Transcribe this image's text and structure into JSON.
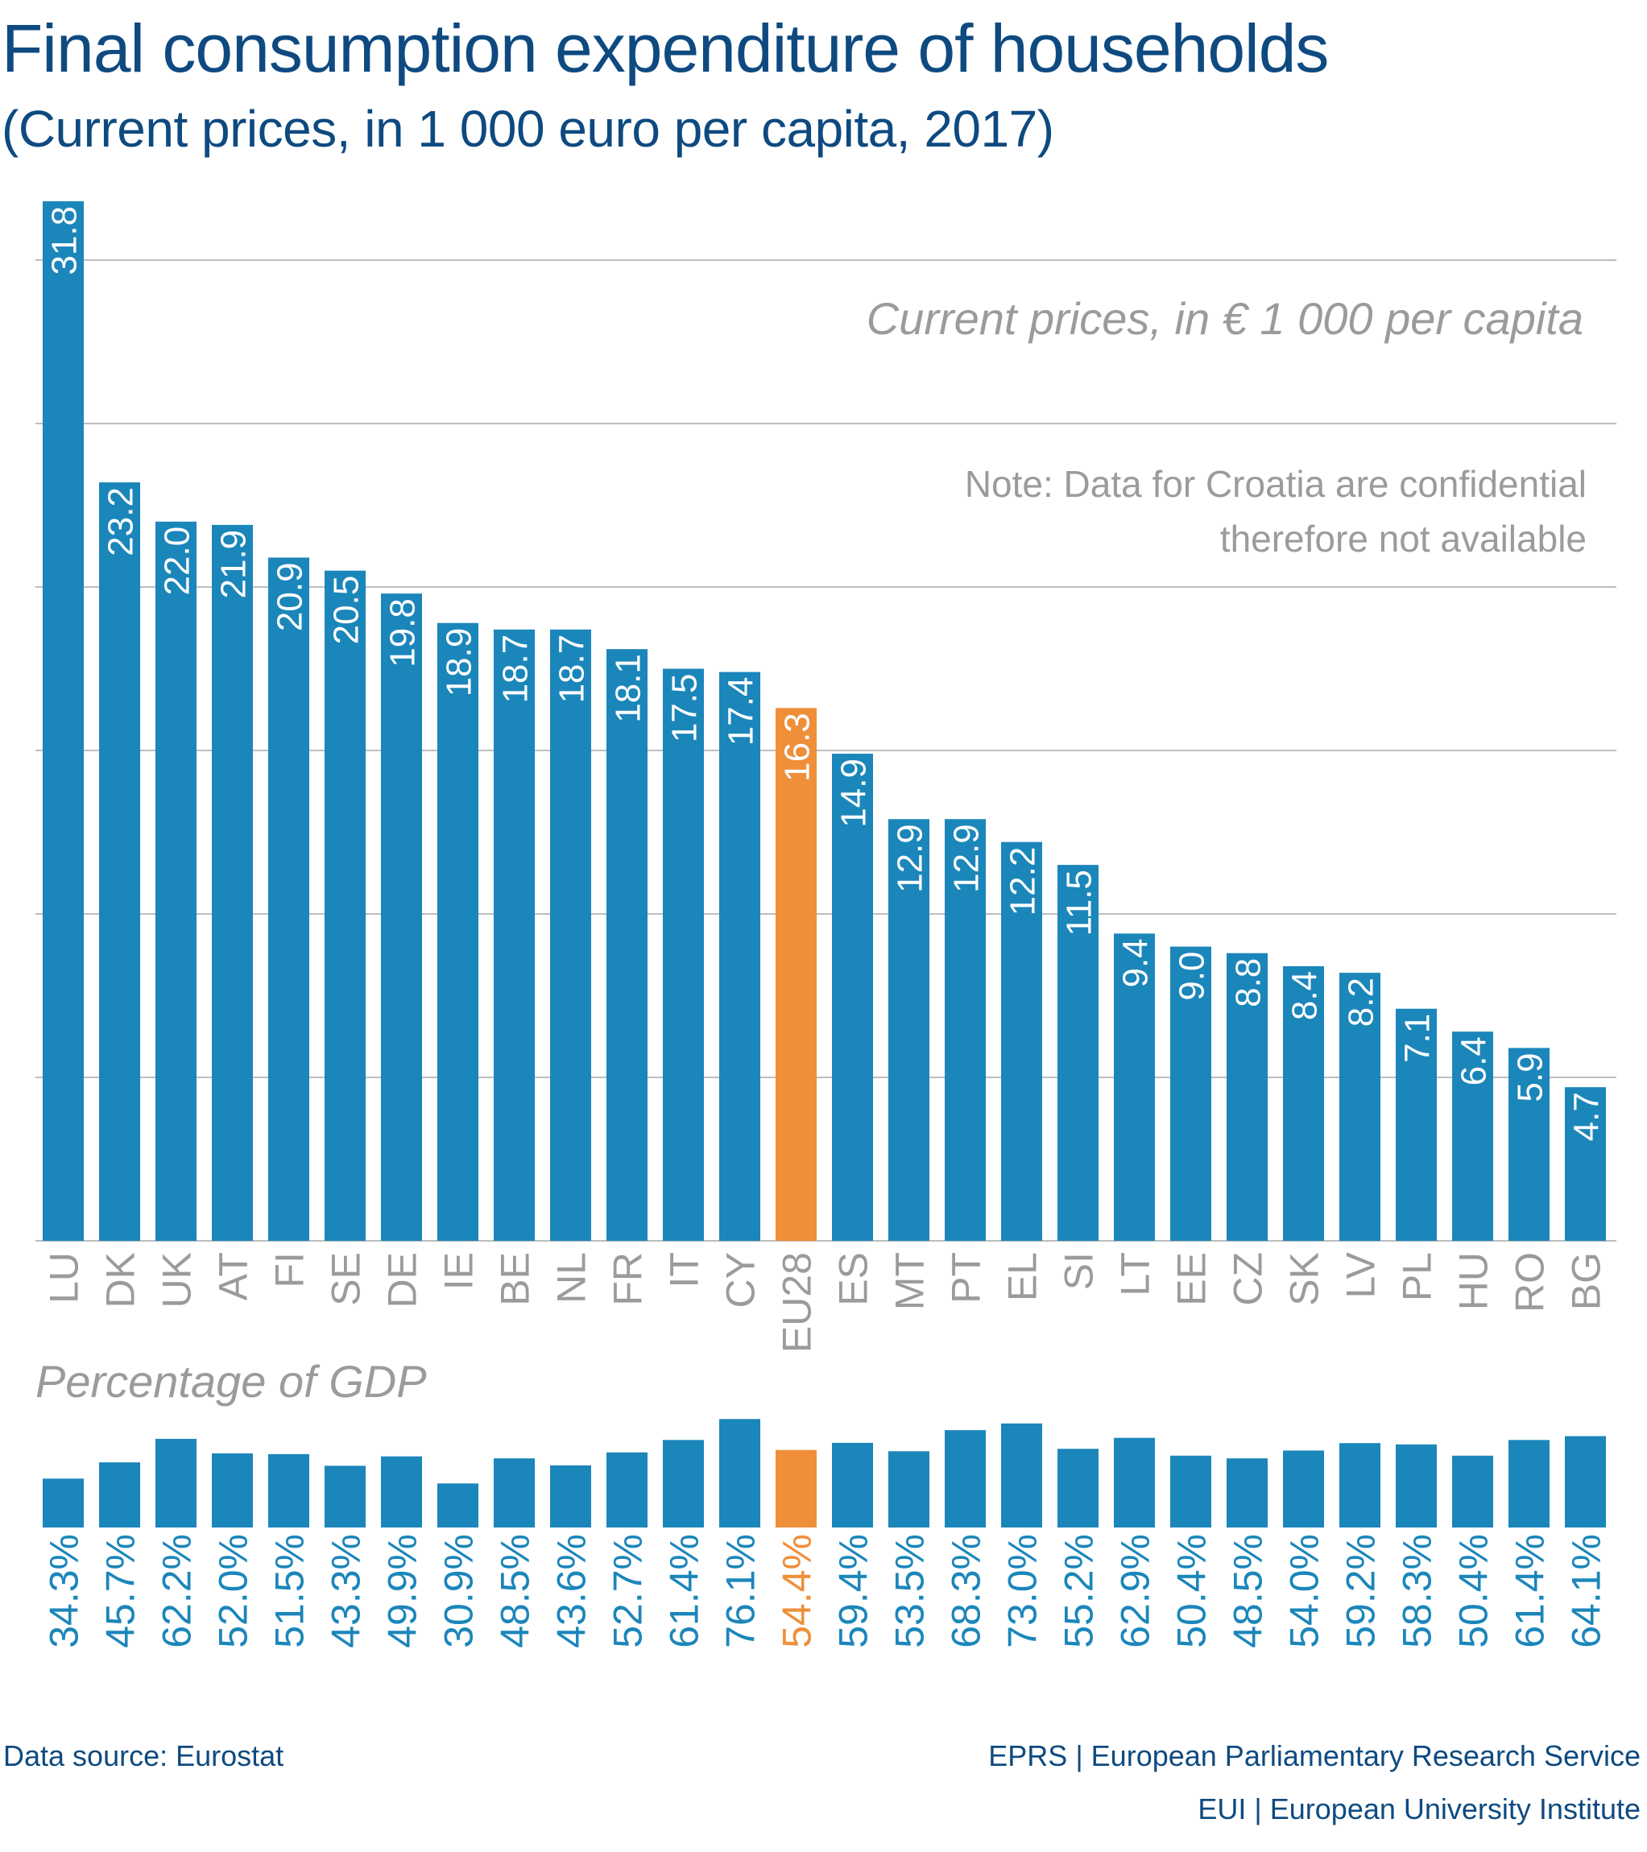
{
  "header": {
    "title": "Final consumption expenditure of households",
    "subtitle": "(Current prices, in 1 000 euro per capita, 2017)"
  },
  "colors": {
    "bar": "#1B86BA",
    "highlight": "#EF8F3A",
    "title": "#0E4A80",
    "annotation": "#9B9B9B",
    "gridline": "#BDBDBD"
  },
  "chart_data": [
    {
      "type": "bar",
      "title": "Current prices, in € 1 000 per capita",
      "note": [
        "Note: Data for Croatia are confidential",
        "therefore not available"
      ],
      "categories": [
        "LU",
        "DK",
        "UK",
        "AT",
        "FI",
        "SE",
        "DE",
        "IE",
        "BE",
        "NL",
        "FR",
        "IT",
        "CY",
        "EU28",
        "ES",
        "MT",
        "PT",
        "EL",
        "SI",
        "LT",
        "EE",
        "CZ",
        "SK",
        "LV",
        "PL",
        "HU",
        "RO",
        "BG"
      ],
      "values": [
        31.8,
        23.2,
        22.0,
        21.9,
        20.9,
        20.5,
        19.8,
        18.9,
        18.7,
        18.7,
        18.1,
        17.5,
        17.4,
        16.3,
        14.9,
        12.9,
        12.9,
        12.2,
        11.5,
        9.4,
        9.0,
        8.8,
        8.4,
        8.2,
        7.1,
        6.4,
        5.9,
        4.7
      ],
      "value_labels": [
        "31.8",
        "23.2",
        "22.0",
        "21.9",
        "20.9",
        "20.5",
        "19.8",
        "18.9",
        "18.7",
        "18.7",
        "18.1",
        "17.5",
        "17.4",
        "16.3",
        "14.9",
        "12.9",
        "12.9",
        "12.2",
        "11.5",
        "9.4",
        "9.0",
        "8.8",
        "8.4",
        "8.2",
        "7.1",
        "6.4",
        "5.9",
        "4.7"
      ],
      "highlight": "EU28",
      "ylim": [
        0,
        35
      ],
      "gridlines": [
        5,
        10,
        15,
        20,
        25,
        30
      ],
      "grid": true,
      "xlabel": "",
      "ylabel": ""
    },
    {
      "type": "bar",
      "title": "Percentage of GDP",
      "categories": [
        "LU",
        "DK",
        "UK",
        "AT",
        "FI",
        "SE",
        "DE",
        "IE",
        "BE",
        "NL",
        "FR",
        "IT",
        "CY",
        "EU28",
        "ES",
        "MT",
        "PT",
        "EL",
        "SI",
        "LT",
        "EE",
        "CZ",
        "SK",
        "LV",
        "PL",
        "HU",
        "RO",
        "BG"
      ],
      "values": [
        34.3,
        45.7,
        62.2,
        52.0,
        51.5,
        43.3,
        49.9,
        30.9,
        48.5,
        43.6,
        52.7,
        61.4,
        76.1,
        54.4,
        59.4,
        53.5,
        68.3,
        73.0,
        55.2,
        62.9,
        50.4,
        48.5,
        54.0,
        59.2,
        58.3,
        50.4,
        61.4,
        64.1
      ],
      "value_labels": [
        "34.3%",
        "45.7%",
        "62.2%",
        "52.0%",
        "51.5%",
        "43.3%",
        "49.9%",
        "30.9%",
        "48.5%",
        "43.6%",
        "52.7%",
        "61.4%",
        "76.1%",
        "54.4%",
        "59.4%",
        "53.5%",
        "68.3%",
        "73.0%",
        "55.2%",
        "62.9%",
        "50.4%",
        "48.5%",
        "54.0%",
        "59.2%",
        "58.3%",
        "50.4%",
        "61.4%",
        "64.1%"
      ],
      "highlight": "EU28",
      "grid": false,
      "xlabel": "",
      "ylabel": ""
    }
  ],
  "footer": {
    "source": "Data source: Eurostat",
    "credit_1": "EPRS | European Parliamentary Research Service",
    "credit_2": "EUI | European University Institute"
  }
}
